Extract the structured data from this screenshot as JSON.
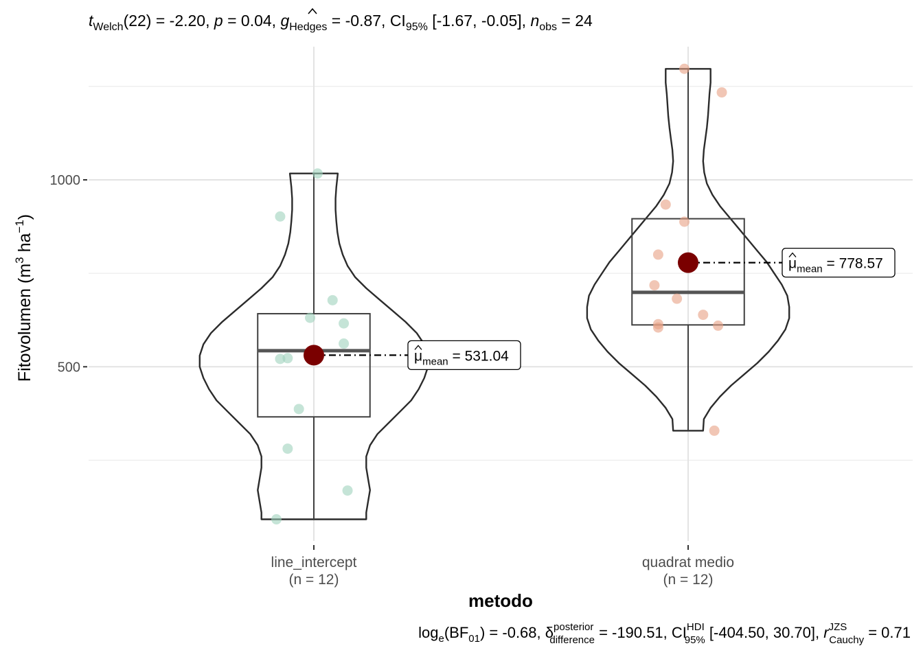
{
  "chart_data": {
    "type": "violin",
    "title": "tWelch(22) = -2.20, p = 0.04, gHedges = -0.87, CI95% [-1.67, -0.05], nobs = 24",
    "title_parts": {
      "t": "t",
      "t_sub": "Welch",
      "df": "(22) = -2.20, ",
      "p": "p",
      "p_val": " = 0.04, ",
      "g": "g",
      "g_sub": "Hedges",
      "g_val": " = -0.87, CI",
      "ci_sub": "95%",
      "ci_val": " [-1.67, -0.05], ",
      "n": "n",
      "n_sub": "obs",
      "n_val": " = 24"
    },
    "caption": "loge(BF01) = -0.68, δposterior difference = -190.51, CIHDI 95% [-404.50, 30.70], rJZS Cauchy = 0.71",
    "caption_parts": {
      "log": "log",
      "log_sub": "e",
      "bf": "(BF",
      "bf_sub": "01",
      "bf_val": ") = -0.68, ",
      "delta": "δ",
      "delta_sup": "posterior",
      "delta_sub": "difference",
      "delta_val": " = -190.51, CI",
      "ci_sup": "HDI",
      "ci_sub": "95%",
      "ci_val": " [-404.50, 30.70], ",
      "r": "r",
      "r_sup": "JZS",
      "r_sub": "Cauchy",
      "r_val": " = 0.71"
    },
    "xlabel": "metodo",
    "ylabel": "Fitovolumen (m3 ha-1)",
    "ylabel_parts": {
      "a": "Fitovolumen (m",
      "sup1": "3",
      "b": " ha",
      "sup2": "−1",
      "c": ")"
    },
    "ylim": [
      40,
      1340
    ],
    "yticks": [
      500,
      1000
    ],
    "categories": [
      "line_intercept",
      "quadrat medio"
    ],
    "category_counts": [
      "(n = 12)",
      "(n = 12)"
    ],
    "colors": [
      "#9ed2bc",
      "#e8a083"
    ],
    "mean_color": "#7a0000",
    "groups": [
      {
        "name": "line_intercept",
        "n_label": "(n = 12)",
        "points": [
          {
            "dx": 0.01,
            "y": 1017
          },
          {
            "dx": -0.09,
            "y": 902
          },
          {
            "dx": 0.05,
            "y": 678
          },
          {
            "dx": -0.01,
            "y": 631
          },
          {
            "dx": 0.08,
            "y": 616
          },
          {
            "dx": 0.08,
            "y": 562
          },
          {
            "dx": -0.07,
            "y": 523
          },
          {
            "dx": -0.09,
            "y": 521
          },
          {
            "dx": -0.04,
            "y": 387
          },
          {
            "dx": -0.07,
            "y": 281
          },
          {
            "dx": 0.09,
            "y": 169
          },
          {
            "dx": -0.1,
            "y": 92
          }
        ],
        "box": {
          "q1": 366,
          "median": 543,
          "q3": 642,
          "min": 92,
          "max": 1017
        },
        "mean": 531.04,
        "mean_label_prefix": "μ",
        "mean_label_sub": "mean",
        "mean_label_value": " = 531.04",
        "violin": [
          [
            92,
            0.14
          ],
          [
            110,
            0.14
          ],
          [
            140,
            0.145
          ],
          [
            170,
            0.15
          ],
          [
            200,
            0.145
          ],
          [
            230,
            0.14
          ],
          [
            260,
            0.14
          ],
          [
            290,
            0.15
          ],
          [
            320,
            0.17
          ],
          [
            350,
            0.2
          ],
          [
            380,
            0.23
          ],
          [
            410,
            0.26
          ],
          [
            440,
            0.28
          ],
          [
            470,
            0.295
          ],
          [
            500,
            0.305
          ],
          [
            530,
            0.305
          ],
          [
            560,
            0.295
          ],
          [
            590,
            0.275
          ],
          [
            620,
            0.245
          ],
          [
            650,
            0.21
          ],
          [
            680,
            0.175
          ],
          [
            710,
            0.14
          ],
          [
            740,
            0.11
          ],
          [
            770,
            0.09
          ],
          [
            800,
            0.077
          ],
          [
            830,
            0.068
          ],
          [
            860,
            0.063
          ],
          [
            890,
            0.06
          ],
          [
            920,
            0.058
          ],
          [
            950,
            0.058
          ],
          [
            980,
            0.06
          ],
          [
            1017,
            0.064
          ]
        ]
      },
      {
        "name": "quadrat medio",
        "n_label": "(n = 12)",
        "points": [
          {
            "dx": -0.01,
            "y": 1297
          },
          {
            "dx": 0.09,
            "y": 1234
          },
          {
            "dx": -0.06,
            "y": 934
          },
          {
            "dx": -0.01,
            "y": 888
          },
          {
            "dx": -0.08,
            "y": 800
          },
          {
            "dx": -0.09,
            "y": 718
          },
          {
            "dx": -0.03,
            "y": 682
          },
          {
            "dx": 0.04,
            "y": 639
          },
          {
            "dx": -0.08,
            "y": 614
          },
          {
            "dx": -0.08,
            "y": 605
          },
          {
            "dx": 0.08,
            "y": 610
          },
          {
            "dx": 0.07,
            "y": 329
          }
        ],
        "box": {
          "q1": 612,
          "median": 699,
          "q3": 896,
          "min": 329,
          "max": 1297
        },
        "mean": 778.57,
        "mean_label_prefix": "μ",
        "mean_label_sub": "mean",
        "mean_label_value": " = 778.57",
        "violin": [
          [
            329,
            0.04
          ],
          [
            360,
            0.042
          ],
          [
            390,
            0.06
          ],
          [
            420,
            0.085
          ],
          [
            450,
            0.115
          ],
          [
            480,
            0.15
          ],
          [
            510,
            0.185
          ],
          [
            540,
            0.215
          ],
          [
            570,
            0.24
          ],
          [
            600,
            0.26
          ],
          [
            630,
            0.27
          ],
          [
            660,
            0.27
          ],
          [
            690,
            0.265
          ],
          [
            720,
            0.25
          ],
          [
            750,
            0.23
          ],
          [
            780,
            0.21
          ],
          [
            810,
            0.185
          ],
          [
            840,
            0.16
          ],
          [
            870,
            0.135
          ],
          [
            900,
            0.11
          ],
          [
            930,
            0.085
          ],
          [
            960,
            0.065
          ],
          [
            990,
            0.05
          ],
          [
            1020,
            0.043
          ],
          [
            1050,
            0.04
          ],
          [
            1080,
            0.042
          ],
          [
            1110,
            0.046
          ],
          [
            1140,
            0.05
          ],
          [
            1170,
            0.053
          ],
          [
            1200,
            0.055
          ],
          [
            1230,
            0.057
          ],
          [
            1260,
            0.06
          ],
          [
            1297,
            0.06
          ]
        ]
      }
    ],
    "grid": true,
    "legend": "none"
  }
}
